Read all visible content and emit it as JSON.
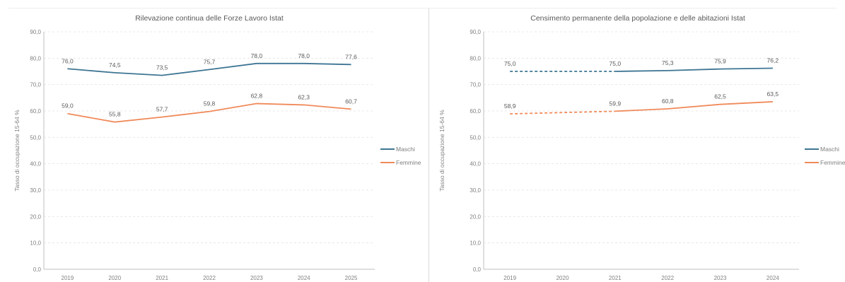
{
  "chart_data": [
    {
      "type": "line",
      "title": "Rilevazione continua delle Forze Lavoro Istat",
      "ylabel": "Tasso di occupazione 15-64 %",
      "xlabel": "",
      "ylim": [
        0,
        90
      ],
      "yticks": [
        "0,0",
        "10,0",
        "20,0",
        "30,0",
        "40,0",
        "50,0",
        "60,0",
        "70,0",
        "80,0",
        "90,0"
      ],
      "categories": [
        "2019",
        "2020",
        "2021",
        "2022",
        "2023",
        "2024",
        "2025"
      ],
      "legend": "right",
      "grid": true,
      "series": [
        {
          "name": "Maschi",
          "color": "#3e7593",
          "values": [
            76.0,
            74.5,
            73.5,
            75.7,
            78.0,
            78.0,
            77.6
          ],
          "labels": [
            "76,0",
            "74,5",
            "73,5",
            "75,7",
            "78,0",
            "78,0",
            "77,6"
          ],
          "dashed_until": 0
        },
        {
          "name": "Femmine",
          "color": "#f08a5a",
          "values": [
            59.0,
            55.8,
            57.7,
            59.8,
            62.8,
            62.3,
            60.7
          ],
          "labels": [
            "59,0",
            "55,8",
            "57,7",
            "59,8",
            "62,8",
            "62,3",
            "60,7"
          ],
          "dashed_until": 0
        }
      ]
    },
    {
      "type": "line",
      "title": "Censimento permanente della popolazione e delle abitazioni Istat",
      "ylabel": "Tasso di occupazione 15-64 %",
      "xlabel": "",
      "ylim": [
        0,
        90
      ],
      "yticks": [
        "0,0",
        "10,0",
        "20,0",
        "30,0",
        "40,0",
        "50,0",
        "60,0",
        "70,0",
        "80,0",
        "90,0"
      ],
      "categories": [
        "2019",
        "2020",
        "2021",
        "2022",
        "2023",
        "2024"
      ],
      "legend": "right",
      "grid": true,
      "series": [
        {
          "name": "Maschi",
          "color": "#3e7593",
          "values": [
            75.0,
            null,
            75.0,
            75.3,
            75.9,
            76.2
          ],
          "labels": [
            "75,0",
            "",
            "75,0",
            "75,3",
            "75,9",
            "76,2"
          ],
          "dashed_until": 2
        },
        {
          "name": "Femmine",
          "color": "#f08a5a",
          "values": [
            58.9,
            null,
            59.9,
            60.8,
            62.5,
            63.5
          ],
          "labels": [
            "58,9",
            "",
            "59,9",
            "60,8",
            "62,5",
            "63,5"
          ],
          "dashed_until": 2
        }
      ]
    }
  ]
}
